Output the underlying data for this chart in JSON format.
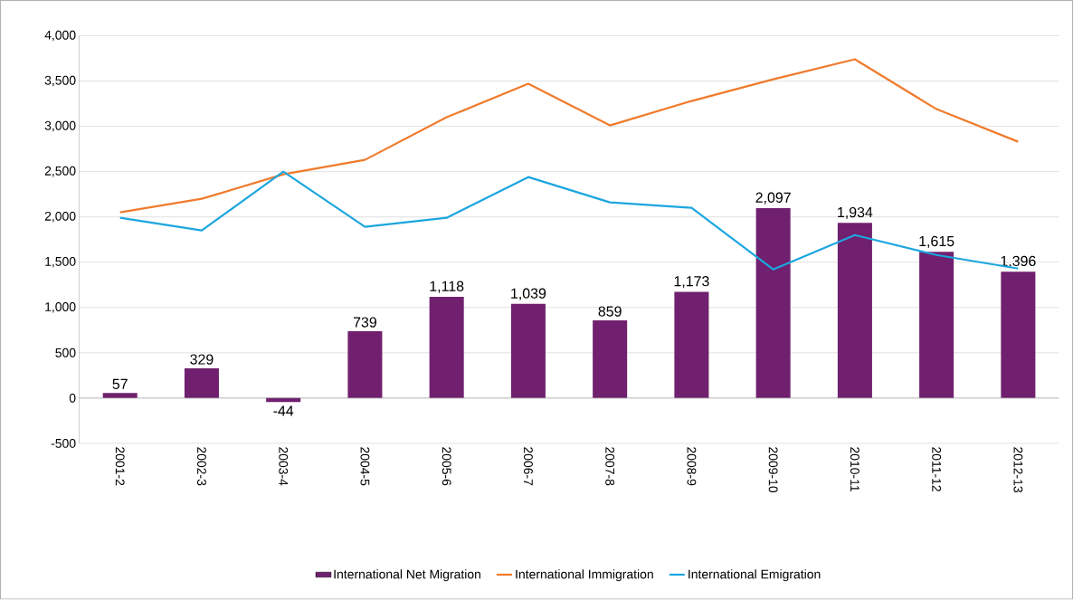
{
  "chart_data": {
    "type": "bar",
    "categories": [
      "2001-2",
      "2002-3",
      "2003-4",
      "2004-5",
      "2005-6",
      "2006-7",
      "2007-8",
      "2008-9",
      "2009-10",
      "2010-11",
      "2011-12",
      "2012-13"
    ],
    "series": [
      {
        "name": "International Net Migration",
        "color": "#70206e",
        "values": [
          57,
          329,
          -44,
          739,
          1118,
          1039,
          859,
          1173,
          2097,
          1934,
          1615,
          1396
        ],
        "value_labels": [
          "57",
          "329",
          "-44",
          "739",
          "1,118",
          "1,039",
          "859",
          "1,173",
          "2,097",
          "1,934",
          "1,615",
          "1,396"
        ]
      },
      {
        "name": "International Immigration",
        "type": "line",
        "color": "#f07b2c",
        "values": [
          2050,
          2200,
          2470,
          2630,
          3100,
          3470,
          3010,
          3280,
          3520,
          3740,
          3190,
          2830
        ]
      },
      {
        "name": "International Emigration",
        "type": "line",
        "color": "#1ca6df",
        "values": [
          1990,
          1850,
          2500,
          1890,
          1990,
          2440,
          2160,
          2100,
          1420,
          1800,
          1580,
          1430
        ]
      }
    ],
    "ylim": [
      -500,
      4000
    ],
    "yticks": [
      {
        "value": -500,
        "label": "-500"
      },
      {
        "value": 0,
        "label": "0"
      },
      {
        "value": 500,
        "label": "500"
      },
      {
        "value": 1000,
        "label": "1,000"
      },
      {
        "value": 1500,
        "label": "1,500"
      },
      {
        "value": 2000,
        "label": "2,000"
      },
      {
        "value": 2500,
        "label": "2,500"
      },
      {
        "value": 3000,
        "label": "3,000"
      },
      {
        "value": 3500,
        "label": "3,500"
      },
      {
        "value": 4000,
        "label": "4,000"
      }
    ],
    "grid": "y",
    "legend": "bottom",
    "marker": "none"
  }
}
